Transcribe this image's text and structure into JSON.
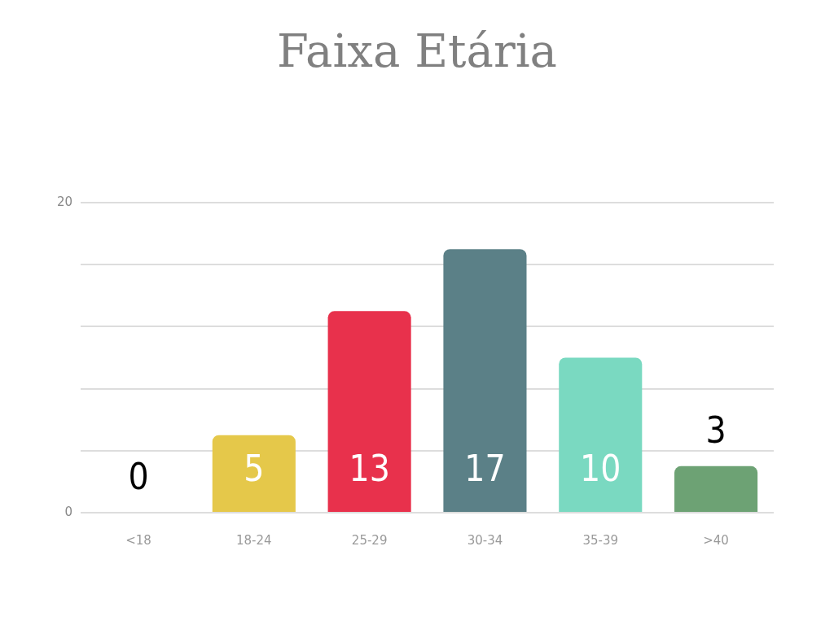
{
  "chart_data": {
    "type": "bar",
    "title": "Faixa Etária",
    "categories": [
      "<18",
      "18-24",
      "25-29",
      "30-34",
      "35-39",
      ">40"
    ],
    "values": [
      0,
      5,
      13,
      17,
      10,
      3
    ],
    "colors": [
      "#cccccc",
      "#e5c84a",
      "#e8314c",
      "#5b8087",
      "#7ad9c1",
      "#6da274"
    ],
    "ylim": [
      0,
      20
    ],
    "yticks": [
      0,
      {
        "value": 4,
        "label": null
      },
      {
        "value": 8,
        "label": null
      },
      {
        "value": 12,
        "label": null
      },
      {
        "value": 16,
        "label": null
      },
      20
    ],
    "grid": "y",
    "legend": false,
    "data_labels": true
  }
}
